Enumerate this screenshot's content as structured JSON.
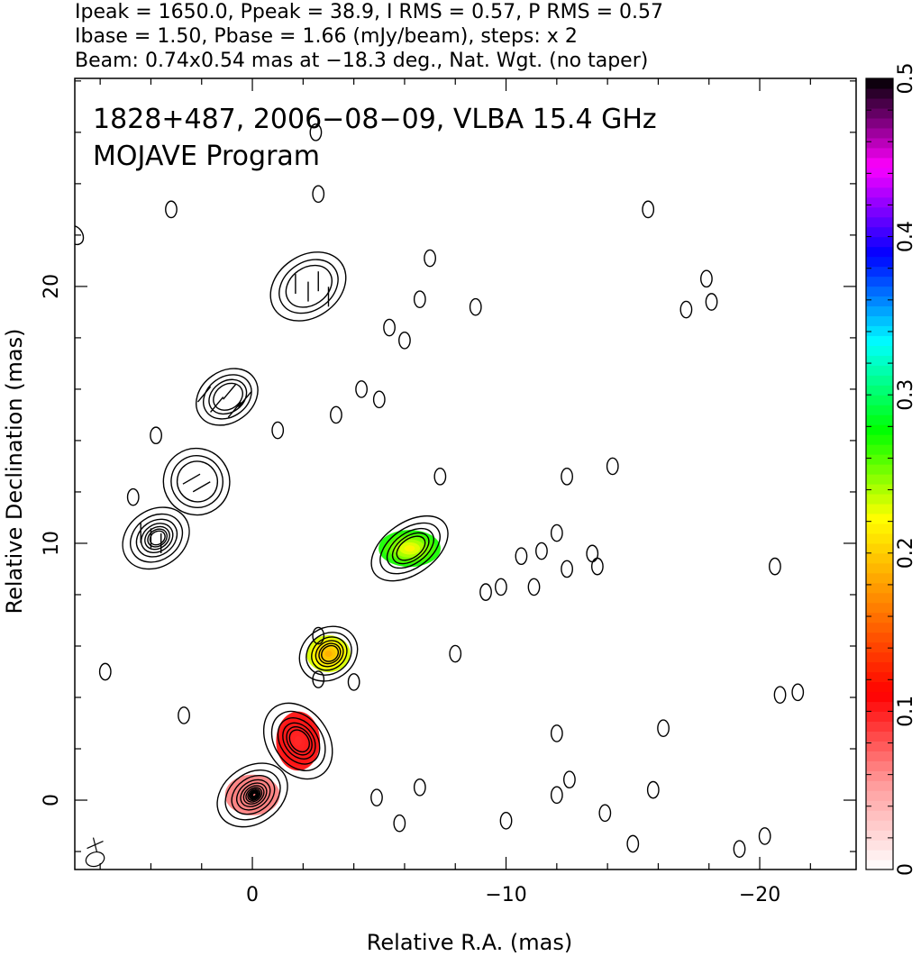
{
  "header": {
    "line1": "Ipeak = 1650.0, Ppeak = 38.9, I RMS = 0.57, P RMS = 0.57",
    "line2": "Ibase = 1.50, Pbase = 1.66 (mJy/beam), steps: x 2",
    "line3": "Beam: 0.74x0.54 mas at −18.3 deg., Nat. Wgt. (no taper)"
  },
  "chart_data": {
    "type": "heatmap",
    "title": "1828+487, 2006−08−09, VLBA 15.4 GHz",
    "subtitle": "MOJAVE Program",
    "xlabel": "Relative R.A. (mas)",
    "ylabel": "Relative Declination (mas)",
    "xlim": [
      7.0,
      -23.8
    ],
    "ylim": [
      -2.7,
      28.1
    ],
    "x_ticks": [
      0,
      -10,
      -20
    ],
    "x_tick_labels": [
      "0",
      "−10",
      "−20"
    ],
    "y_ticks": [
      0,
      10,
      20
    ],
    "y_tick_labels": [
      "0",
      "10",
      "20"
    ],
    "colorbar": {
      "min": 0,
      "max": 0.5,
      "ticks": [
        0,
        0.1,
        0.2,
        0.3,
        0.4,
        0.5
      ],
      "tick_labels": [
        "0",
        "0.1",
        "0.2",
        "0.3",
        "0.4",
        "0.5"
      ],
      "colormap": [
        "#ffffff",
        "#ff9999",
        "#ff0000",
        "#ff8000",
        "#ffff00",
        "#00ff00",
        "#00ffff",
        "#0000ff",
        "#ff00ff",
        "#000000"
      ]
    },
    "contour_components": [
      {
        "x": 0.0,
        "y": 0.2,
        "flux_levels": 13,
        "polarization": 0.06,
        "sx": 1.5,
        "sy": 1.1
      },
      {
        "x": -1.8,
        "y": 2.3,
        "flux_levels": 6,
        "polarization": 0.1,
        "sx": 1.2,
        "sy": 1.6
      },
      {
        "x": -3.0,
        "y": 5.7,
        "flux_levels": 6,
        "polarization": 0.22,
        "sx": 1.2,
        "sy": 1.0
      },
      {
        "x": -6.2,
        "y": 9.8,
        "flux_levels": 5,
        "polarization": 0.26,
        "sx": 1.7,
        "sy": 1.0
      },
      {
        "x": 3.8,
        "y": 10.2,
        "flux_levels": 7,
        "polarization": null,
        "sx": 1.4,
        "sy": 1.1
      },
      {
        "x": 2.2,
        "y": 12.4,
        "flux_levels": 3,
        "polarization": null,
        "sx": 1.3,
        "sy": 1.3
      },
      {
        "x": 1.0,
        "y": 15.7,
        "flux_levels": 4,
        "polarization": null,
        "sx": 1.3,
        "sy": 1.0
      },
      {
        "x": -2.2,
        "y": 20.0,
        "flux_levels": 3,
        "polarization": null,
        "sx": 1.6,
        "sy": 1.2
      },
      {
        "x": 7.0,
        "y": 22.0,
        "flux_levels": 1,
        "polarization": null,
        "sx": 0.3,
        "sy": 0.4
      }
    ],
    "polarization_sticks": [
      {
        "x": 1.9,
        "y": 15.8,
        "angle": 40
      },
      {
        "x": 1.4,
        "y": 15.4,
        "angle": 40
      },
      {
        "x": 0.9,
        "y": 15.9,
        "angle": 40
      },
      {
        "x": 0.7,
        "y": 15.2,
        "angle": 40
      },
      {
        "x": 0.3,
        "y": 15.6,
        "angle": 40
      },
      {
        "x": -1.7,
        "y": 20.1,
        "angle": 0
      },
      {
        "x": -2.2,
        "y": 19.8,
        "angle": 0
      },
      {
        "x": -2.6,
        "y": 20.2,
        "angle": 0
      },
      {
        "x": -3.0,
        "y": 19.6,
        "angle": 0
      },
      {
        "x": 4.4,
        "y": 10.4,
        "angle": 0
      },
      {
        "x": 4.0,
        "y": 10.2,
        "angle": 0
      },
      {
        "x": 3.6,
        "y": 10.0,
        "angle": 0
      },
      {
        "x": 2.4,
        "y": 12.5,
        "angle": 60
      },
      {
        "x": 2.0,
        "y": 12.2,
        "angle": 60
      }
    ],
    "noise_contours": [
      {
        "x": -2.5,
        "y": 26.0
      },
      {
        "x": -2.6,
        "y": 23.6
      },
      {
        "x": 3.2,
        "y": 23.0
      },
      {
        "x": -7.0,
        "y": 21.1
      },
      {
        "x": -6.6,
        "y": 19.5
      },
      {
        "x": -8.8,
        "y": 19.2
      },
      {
        "x": -5.4,
        "y": 18.4
      },
      {
        "x": -6.0,
        "y": 17.9
      },
      {
        "x": -5.0,
        "y": 15.6
      },
      {
        "x": -4.3,
        "y": 16.0
      },
      {
        "x": -3.3,
        "y": 15.0
      },
      {
        "x": -7.4,
        "y": 12.6
      },
      {
        "x": -9.2,
        "y": 8.1
      },
      {
        "x": -9.8,
        "y": 8.3
      },
      {
        "x": -10.6,
        "y": 9.5
      },
      {
        "x": -11.1,
        "y": 8.3
      },
      {
        "x": -11.4,
        "y": 9.7
      },
      {
        "x": -12.0,
        "y": 10.4
      },
      {
        "x": -12.4,
        "y": 9.0
      },
      {
        "x": -13.6,
        "y": 9.1
      },
      {
        "x": -13.4,
        "y": 9.6
      },
      {
        "x": -12.4,
        "y": 12.6
      },
      {
        "x": -14.2,
        "y": 13.0
      },
      {
        "x": -15.6,
        "y": 23.0
      },
      {
        "x": -17.9,
        "y": 20.3
      },
      {
        "x": -18.1,
        "y": 19.4
      },
      {
        "x": -17.1,
        "y": 19.1
      },
      {
        "x": -20.6,
        "y": 9.1
      },
      {
        "x": -20.8,
        "y": 4.1
      },
      {
        "x": -21.5,
        "y": 4.2
      },
      {
        "x": -1.0,
        "y": 14.4
      },
      {
        "x": -2.6,
        "y": 4.7
      },
      {
        "x": -8.0,
        "y": 5.7
      },
      {
        "x": -12.0,
        "y": 2.6
      },
      {
        "x": -12.5,
        "y": 0.8
      },
      {
        "x": -16.2,
        "y": 2.8
      },
      {
        "x": -15.8,
        "y": 0.4
      },
      {
        "x": -15.0,
        "y": -1.7
      },
      {
        "x": -10.0,
        "y": -0.8
      },
      {
        "x": -13.9,
        "y": -0.5
      },
      {
        "x": -5.8,
        "y": -0.9
      },
      {
        "x": -6.6,
        "y": 0.5
      },
      {
        "x": -19.2,
        "y": -1.9
      },
      {
        "x": -20.2,
        "y": -1.4
      },
      {
        "x": -4.9,
        "y": 0.1
      },
      {
        "x": 5.8,
        "y": 5.0
      },
      {
        "x": 4.7,
        "y": 11.8
      },
      {
        "x": 3.8,
        "y": 14.2
      },
      {
        "x": -4.0,
        "y": 4.6
      },
      {
        "x": -2.6,
        "y": 6.4
      },
      {
        "x": 2.7,
        "y": 3.3
      },
      {
        "x": -12.0,
        "y": 0.2
      }
    ]
  }
}
